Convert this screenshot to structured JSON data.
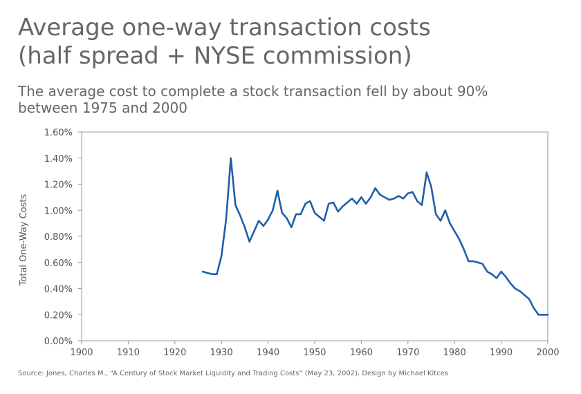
{
  "header": {
    "title_line1": "Average one-way transaction costs",
    "title_line2": "(half spread + NYSE commission)",
    "subtitle_line1": "The average cost to complete a stock transaction fell by about 90%",
    "subtitle_line2": "between 1975 and 2000"
  },
  "footer": {
    "source": "Source: Jones, Charles M., “A Century of Stock Market Liquidity and Trading Costs” (May 23, 2002). Design by Michael Kitces"
  },
  "colors": {
    "line": "#1f5ea8",
    "axis": "#999999"
  },
  "chart_data": {
    "type": "line",
    "title": "Average one-way transaction costs (half spread + NYSE commission)",
    "subtitle": "The average cost to complete a stock transaction fell by about 90% between 1975 and 2000",
    "xlabel": "",
    "ylabel": "Total One-Way Costs",
    "xlim": [
      1900,
      2000
    ],
    "ylim": [
      0,
      1.6
    ],
    "x_ticks": [
      "1900",
      "1910",
      "1920",
      "1930",
      "1940",
      "1950",
      "1960",
      "1970",
      "1980",
      "1990",
      "2000"
    ],
    "y_ticks": [
      "0.00%",
      "0.20%",
      "0.40%",
      "0.60%",
      "0.80%",
      "1.00%",
      "1.20%",
      "1.40%",
      "1.60%"
    ],
    "grid": false,
    "series": [
      {
        "x": [
          1926,
          1927,
          1928,
          1929,
          1930,
          1931,
          1932,
          1933,
          1934,
          1935,
          1936,
          1937,
          1938,
          1939,
          1940,
          1941,
          1942,
          1943,
          1944,
          1945,
          1946,
          1947,
          1948,
          1949,
          1950,
          1951,
          1952,
          1953,
          1954,
          1955,
          1956,
          1957,
          1958,
          1959,
          1960,
          1961,
          1962,
          1963,
          1964,
          1965,
          1966,
          1967,
          1968,
          1969,
          1970,
          1971,
          1972,
          1973,
          1974,
          1975,
          1976,
          1977,
          1978,
          1979,
          1980,
          1981,
          1982,
          1983,
          1984,
          1985,
          1986,
          1987,
          1988,
          1989,
          1990,
          1991,
          1992,
          1993,
          1994,
          1995,
          1996,
          1997,
          1998,
          1999,
          2000
        ],
        "y": [
          0.53,
          0.52,
          0.51,
          0.51,
          0.65,
          0.93,
          1.4,
          1.04,
          0.96,
          0.87,
          0.76,
          0.84,
          0.92,
          0.88,
          0.93,
          1.0,
          1.15,
          0.98,
          0.94,
          0.87,
          0.97,
          0.97,
          1.05,
          1.07,
          0.98,
          0.95,
          0.92,
          1.05,
          1.06,
          0.99,
          1.03,
          1.06,
          1.09,
          1.05,
          1.1,
          1.05,
          1.1,
          1.17,
          1.12,
          1.1,
          1.08,
          1.09,
          1.11,
          1.09,
          1.13,
          1.14,
          1.07,
          1.04,
          1.29,
          1.18,
          0.97,
          0.92,
          1.0,
          0.9,
          0.84,
          0.78,
          0.7,
          0.61,
          0.61,
          0.6,
          0.59,
          0.53,
          0.51,
          0.48,
          0.53,
          0.49,
          0.44,
          0.4,
          0.38,
          0.35,
          0.32,
          0.25,
          0.2,
          0.2,
          0.2
        ]
      }
    ]
  }
}
